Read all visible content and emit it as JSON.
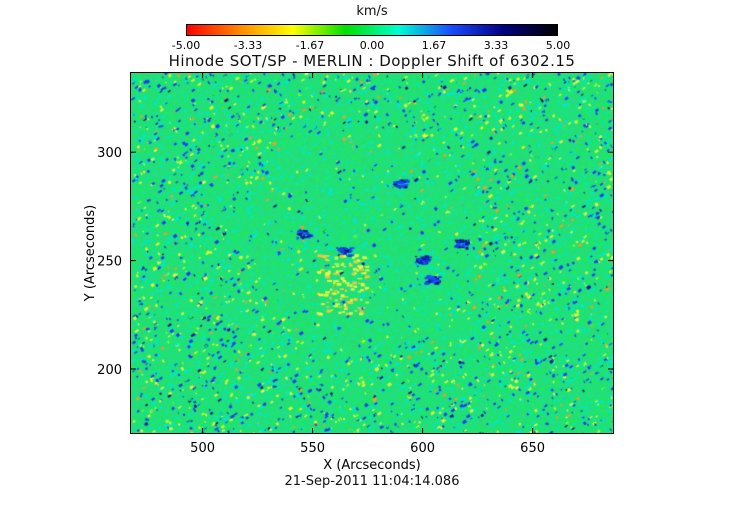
{
  "colorbar": {
    "unit": "km/s",
    "ticks": [
      "-5.00",
      "-3.33",
      "-1.67",
      "0.00",
      "1.67",
      "3.33",
      "5.00"
    ],
    "colors": [
      "#ff0000",
      "#ff8a00",
      "#ffff00",
      "#00e000",
      "#00ffd0",
      "#1a4bff",
      "#000080",
      "#000000"
    ]
  },
  "title": "Hinode SOT/SP - MERLIN : Doppler Shift of 6302.15",
  "axes": {
    "xlabel": "X (Arcseconds)",
    "ylabel": "Y (Arcseconds)",
    "xticks": [
      "500",
      "550",
      "600",
      "650"
    ],
    "yticks": [
      "300",
      "250",
      "200"
    ],
    "xlim": [
      467,
      687
    ],
    "ylim": [
      170,
      337
    ]
  },
  "timestamp": "21-Sep-2011 11:04:14.086",
  "image": {
    "dominant_color": "#1fe07a",
    "secondary_color": "#00e8c8",
    "speckle_blue": "#1a3cff",
    "speckle_yellow": "#e6ff2a"
  }
}
